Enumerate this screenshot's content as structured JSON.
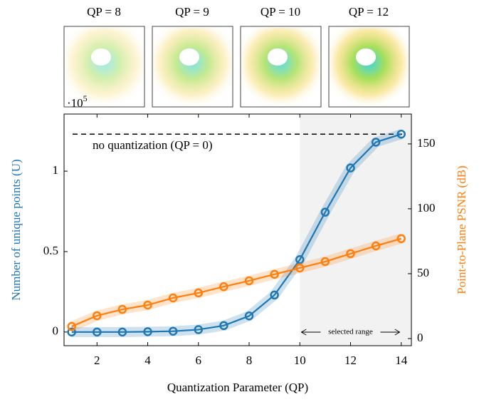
{
  "thumbnails": [
    "QP = 8",
    "QP = 9",
    "QP = 10",
    "QP = 12"
  ],
  "chart_data": {
    "type": "line",
    "xlabel": "Quantization Parameter (QP)",
    "ylabel": "Number of unique points (U)",
    "y2label": "Point-to-Plane PSNR (dB)",
    "y_multiplier": {
      "base": "·10",
      "exponent": "5"
    },
    "x": [
      1,
      2,
      3,
      4,
      5,
      6,
      7,
      8,
      9,
      10,
      11,
      12,
      13,
      14
    ],
    "series": [
      {
        "color": "#1f77b4",
        "values": [
          0,
          0,
          0,
          0.002,
          0.005,
          0.015,
          0.04,
          0.1,
          0.23,
          0.45,
          0.745,
          1.02,
          1.18,
          1.23
        ]
      },
      {
        "color": "#ff7f0e",
        "axis": "y2",
        "values": [
          9.3,
          17.6,
          22.5,
          25.8,
          31.3,
          35.2,
          40,
          44.5,
          49.5,
          54.4,
          59.3,
          65.4,
          71.4,
          77
        ]
      }
    ],
    "xlim": [
      0.7,
      14.4
    ],
    "xticks": [
      2,
      4,
      6,
      8,
      10,
      12,
      14
    ],
    "ylim": [
      -0.085,
      1.355
    ],
    "yticks": [
      0,
      0.5,
      1
    ],
    "y2lim": [
      -5.5,
      173
    ],
    "y2ticks": [
      0,
      50,
      100,
      150
    ],
    "reference": {
      "value": 1.23,
      "label": "no quantization (QP = 0)"
    },
    "highlight": {
      "range": [
        10,
        14
      ],
      "label": "selected range"
    }
  }
}
